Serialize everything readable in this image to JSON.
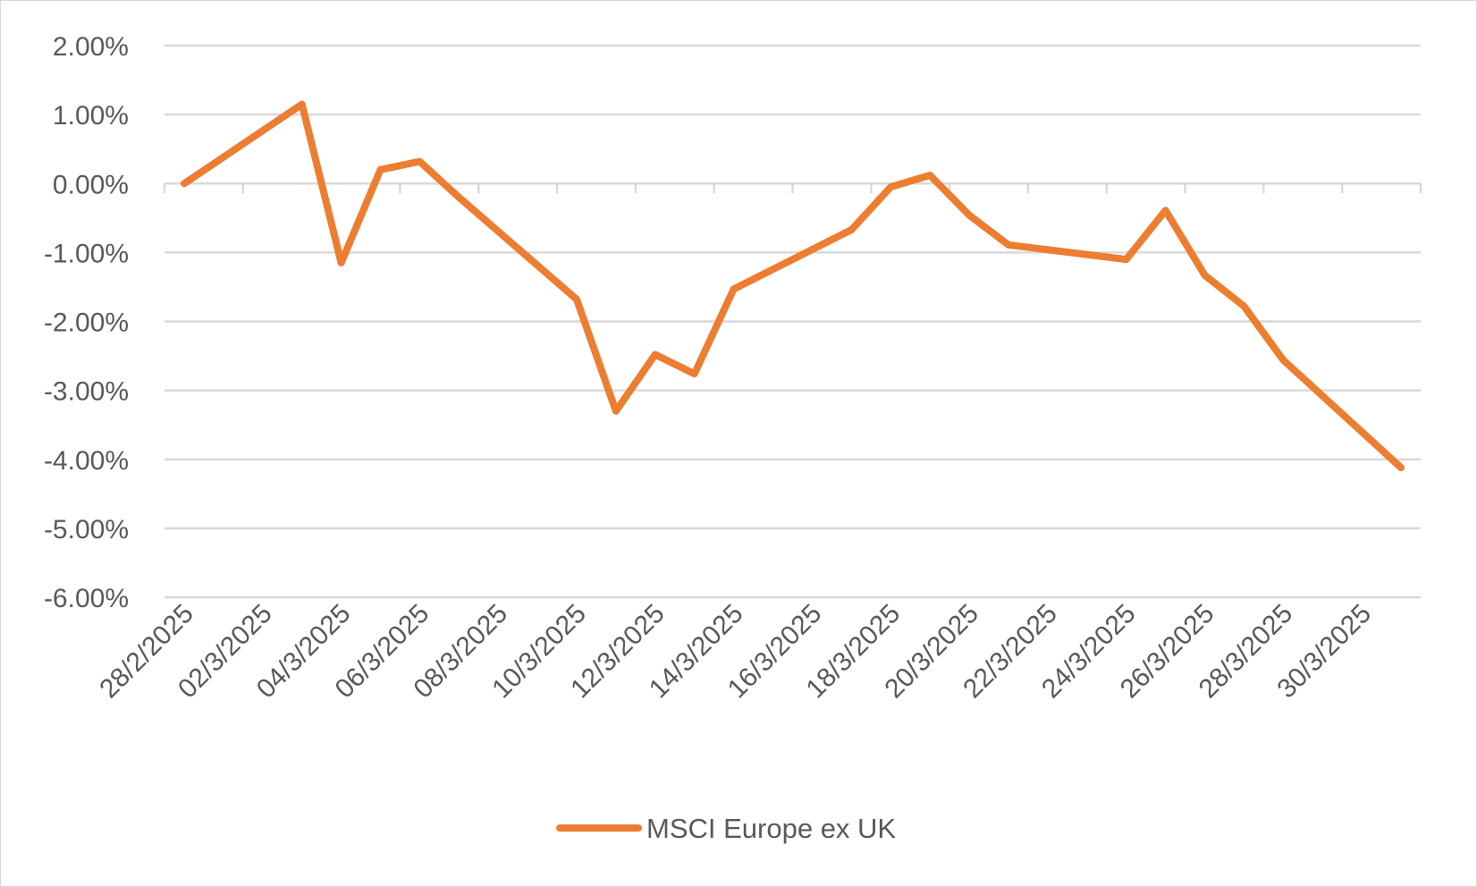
{
  "chart_data": {
    "type": "line",
    "title": "",
    "xlabel": "",
    "ylabel": "",
    "ylim": [
      -6,
      2
    ],
    "y_tick_step": 1,
    "y_tick_labels": [
      "2.00%",
      "1.00%",
      "0.00%",
      "-1.00%",
      "-2.00%",
      "-3.00%",
      "-4.00%",
      "-5.00%",
      "-6.00%"
    ],
    "x_tick_labels": [
      "28/2/2025",
      "02/3/2025",
      "04/3/2025",
      "06/3/2025",
      "08/3/2025",
      "10/3/2025",
      "12/3/2025",
      "14/3/2025",
      "16/3/2025",
      "18/3/2025",
      "20/3/2025",
      "22/3/2025",
      "24/3/2025",
      "26/3/2025",
      "28/3/2025",
      "30/3/2025"
    ],
    "x_start_date": "28/2/2025",
    "x_end_date": "31/3/2025",
    "grid": true,
    "legend_position": "bottom",
    "series": [
      {
        "name": "MSCI Europe ex UK",
        "color": "#ed7d31",
        "points": [
          {
            "x": "28/2/2025",
            "y": 0.0
          },
          {
            "x": "03/3/2025",
            "y": 1.15
          },
          {
            "x": "04/3/2025",
            "y": -1.15
          },
          {
            "x": "05/3/2025",
            "y": 0.2
          },
          {
            "x": "06/3/2025",
            "y": 0.32
          },
          {
            "x": "07/3/2025",
            "y": -0.2
          },
          {
            "x": "10/3/2025",
            "y": -1.68
          },
          {
            "x": "11/3/2025",
            "y": -3.3
          },
          {
            "x": "12/3/2025",
            "y": -2.48
          },
          {
            "x": "13/3/2025",
            "y": -2.76
          },
          {
            "x": "14/3/2025",
            "y": -1.53
          },
          {
            "x": "17/3/2025",
            "y": -0.67
          },
          {
            "x": "18/3/2025",
            "y": -0.05
          },
          {
            "x": "19/3/2025",
            "y": 0.12
          },
          {
            "x": "20/3/2025",
            "y": -0.46
          },
          {
            "x": "21/3/2025",
            "y": -0.89
          },
          {
            "x": "24/3/2025",
            "y": -1.1
          },
          {
            "x": "25/3/2025",
            "y": -0.39
          },
          {
            "x": "26/3/2025",
            "y": -1.33
          },
          {
            "x": "27/3/2025",
            "y": -1.78
          },
          {
            "x": "28/3/2025",
            "y": -2.56
          },
          {
            "x": "31/3/2025",
            "y": -4.12
          }
        ]
      }
    ]
  }
}
